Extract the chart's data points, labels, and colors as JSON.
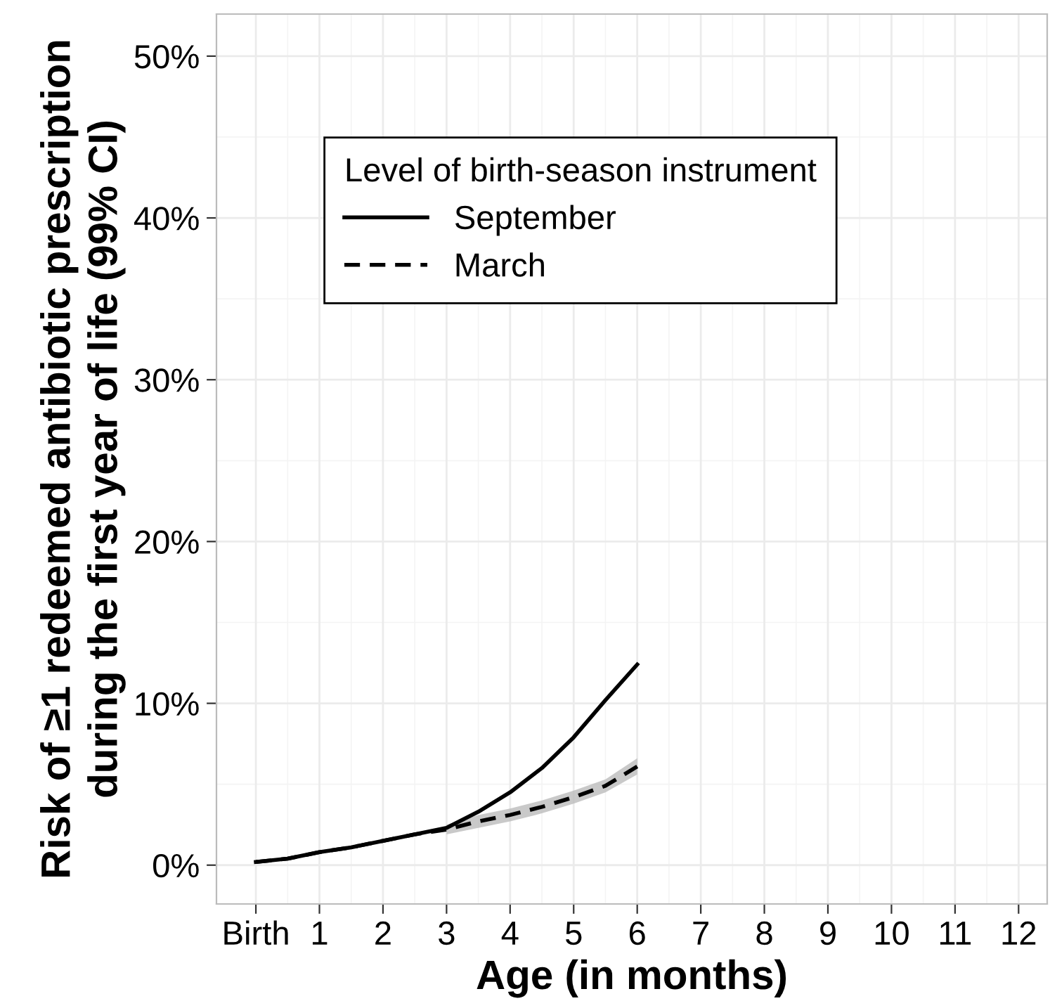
{
  "chart_data": {
    "type": "line",
    "xlabel": "Age (in months)",
    "ylabel": "Risk of ≥1 redeemed antibiotic prescription\nduring the first year of life (99% CI)",
    "legend_title": "Level of birth-season instrument",
    "x": [
      0,
      0.5,
      1,
      1.5,
      2,
      2.5,
      3,
      3.5,
      4,
      4.5,
      5,
      5.5,
      6
    ],
    "series": [
      {
        "name": "September",
        "color": "#000000",
        "line_style": "solid",
        "values": [
          0.2,
          0.4,
          0.8,
          1.1,
          1.5,
          1.9,
          2.3,
          3.3,
          4.5,
          6.0,
          7.9,
          10.2,
          12.4
        ]
      },
      {
        "name": "March",
        "color": "#000000",
        "line_style": "dashed",
        "values": [
          0.2,
          0.4,
          0.8,
          1.1,
          1.5,
          1.9,
          2.2,
          2.7,
          3.1,
          3.6,
          4.2,
          4.9,
          6.1
        ],
        "lower": [
          null,
          null,
          null,
          null,
          null,
          null,
          1.9,
          2.3,
          2.7,
          3.2,
          3.8,
          4.5,
          5.6
        ],
        "upper": [
          null,
          null,
          null,
          null,
          null,
          null,
          2.5,
          3.1,
          3.5,
          4.0,
          4.6,
          5.3,
          6.6
        ]
      }
    ],
    "xlim": [
      -0.62,
      12.45
    ],
    "ylim": [
      -2.4,
      52.6
    ],
    "xticks": [
      {
        "value": 0,
        "label": "Birth"
      },
      1,
      2,
      3,
      4,
      5,
      6,
      7,
      8,
      9,
      10,
      11,
      12
    ],
    "yticks": [
      {
        "value": 0,
        "label": "0%"
      },
      {
        "value": 10,
        "label": "10%"
      },
      {
        "value": 20,
        "label": "20%"
      },
      {
        "value": 30,
        "label": "30%"
      },
      {
        "value": 40,
        "label": "40%"
      },
      {
        "value": 50,
        "label": "50%"
      }
    ],
    "grid": true,
    "legend": "top left",
    "marker": "none"
  }
}
